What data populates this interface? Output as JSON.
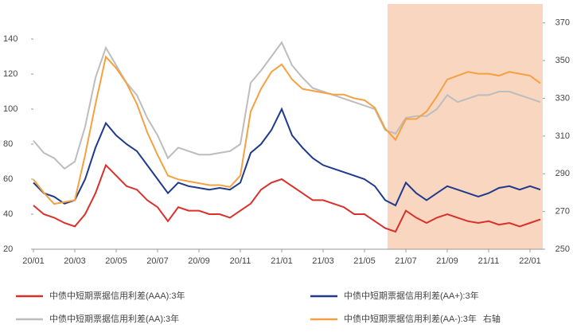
{
  "chart_data": {
    "type": "line",
    "categories": [
      "20/01",
      null,
      null,
      null,
      "20/03",
      null,
      null,
      null,
      "20/05",
      null,
      null,
      null,
      "20/07",
      null,
      null,
      null,
      "20/09",
      null,
      null,
      null,
      "20/11",
      null,
      null,
      null,
      "21/01",
      null,
      null,
      null,
      "21/03",
      null,
      null,
      null,
      "21/05",
      null,
      null,
      null,
      "21/07",
      null,
      null,
      null,
      "21/09",
      null,
      null,
      null,
      "21/11",
      null,
      null,
      null,
      "22/01",
      null
    ],
    "ylim": [
      20,
      160
    ],
    "yticks": [
      20,
      40,
      60,
      80,
      100,
      120,
      140
    ],
    "y2lim": [
      250,
      380
    ],
    "y2ticks": [
      250,
      270,
      290,
      310,
      330,
      350,
      370
    ],
    "y2_note": "右轴",
    "series": [
      {
        "name": "中债中短期票据信用利差(AAA):3年",
        "color": "#d9302c",
        "values": [
          45,
          40,
          38,
          35,
          33,
          40,
          52,
          68,
          62,
          56,
          54,
          48,
          44,
          36,
          44,
          42,
          42,
          40,
          40,
          38,
          42,
          46,
          54,
          58,
          60,
          56,
          52,
          48,
          48,
          46,
          44,
          40,
          40,
          36,
          32,
          30,
          42,
          38,
          35,
          38,
          40,
          38,
          36,
          35,
          36,
          34,
          35,
          33,
          35,
          37
        ]
      },
      {
        "name": "中债中短期票据信用利差(AA+):3年",
        "color": "#1f3a8a",
        "values": [
          58,
          52,
          50,
          46,
          48,
          60,
          78,
          92,
          85,
          80,
          76,
          68,
          60,
          52,
          58,
          56,
          55,
          54,
          55,
          54,
          58,
          75,
          80,
          88,
          100,
          85,
          78,
          72,
          68,
          66,
          64,
          62,
          60,
          56,
          48,
          45,
          58,
          52,
          48,
          52,
          56,
          54,
          52,
          50,
          52,
          55,
          56,
          54,
          56,
          54
        ]
      },
      {
        "name": "中债中短期票据信用利差(AA):3年",
        "color": "#bdbdbd",
        "values": [
          82,
          75,
          72,
          66,
          70,
          90,
          118,
          135,
          125,
          115,
          108,
          95,
          85,
          72,
          78,
          76,
          74,
          74,
          75,
          76,
          80,
          115,
          122,
          130,
          138,
          125,
          118,
          112,
          110,
          108,
          106,
          104,
          102,
          100,
          88,
          86,
          95,
          96,
          96,
          100,
          108,
          104,
          106,
          108,
          108,
          110,
          110,
          108,
          106,
          104
        ]
      },
      {
        "name": "中债中短期票据信用利差(AA-):3年",
        "color": "#f5a142",
        "axis": "y2",
        "values": [
          287,
          280,
          274,
          275,
          276,
          300,
          327,
          352,
          346,
          338,
          327,
          312,
          300,
          289,
          287,
          286,
          285,
          284,
          284,
          283,
          289,
          323,
          335,
          344,
          348,
          340,
          335,
          334,
          333,
          332,
          332,
          330,
          329,
          325,
          314,
          308,
          319,
          319,
          323,
          331,
          340,
          342,
          344,
          343,
          343,
          342,
          344,
          343,
          342,
          338
        ]
      }
    ]
  }
}
